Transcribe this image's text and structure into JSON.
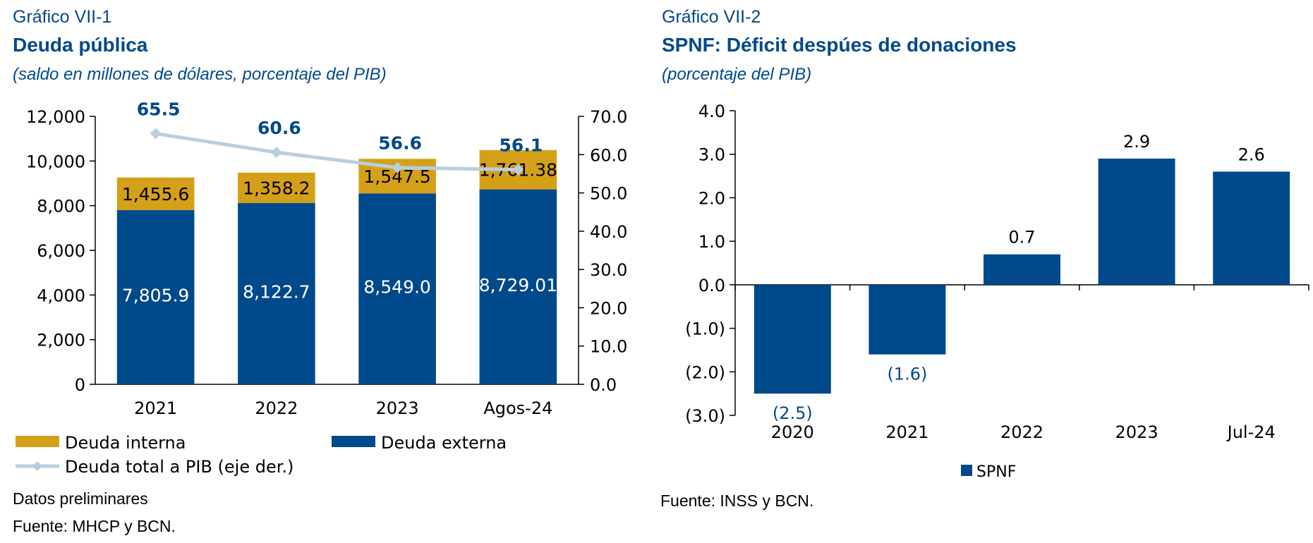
{
  "colors": {
    "external": "#00498a",
    "internal": "#d4a017",
    "ratio_line": "#b8cfe0",
    "title": "#00498a"
  },
  "left": {
    "label": "Gráfico VII-1",
    "title": "Deuda pública",
    "subtitle": "(saldo en millones de dólares, porcentaje del PIB)",
    "note": "Datos preliminares",
    "source": "Fuente: MHCP y BCN.",
    "legend": {
      "internal": "Deuda interna",
      "external": "Deuda externa",
      "ratio": "Deuda total a PIB (eje der.)"
    }
  },
  "right": {
    "label": "Gráfico VII-2",
    "title": "SPNF: Déficit despúes de donaciones",
    "subtitle": "(porcentaje del PIB)",
    "source": "Fuente: INSS y  BCN.",
    "legend": {
      "series": "SPNF"
    }
  },
  "chart_data": [
    {
      "type": "bar",
      "stacked": true,
      "categories": [
        "2021",
        "2022",
        "2023",
        "Agos-24"
      ],
      "series": [
        {
          "name": "Deuda externa",
          "values": [
            7805.9,
            8122.7,
            8549.0,
            8729.01
          ],
          "labels": [
            "7,805.9",
            "8,122.7",
            "8,549.0",
            "8,729.01"
          ]
        },
        {
          "name": "Deuda interna",
          "values": [
            1455.6,
            1358.2,
            1547.5,
            1761.38
          ],
          "labels": [
            "1,455.6",
            "1,358.2",
            "1,547.5",
            "1,761.38"
          ]
        }
      ],
      "line_series": {
        "name": "Deuda total a PIB (eje der.)",
        "axis": "right",
        "values": [
          65.5,
          60.6,
          56.6,
          56.1
        ],
        "labels": [
          "65.5",
          "60.6",
          "56.6",
          "56.1"
        ]
      },
      "ylim": [
        0,
        12000
      ],
      "yticks": [
        "0",
        "2,000",
        "4,000",
        "6,000",
        "8,000",
        "10,000",
        "12,000"
      ],
      "y2lim": [
        0,
        70
      ],
      "y2ticks": [
        "0.0",
        "10.0",
        "20.0",
        "30.0",
        "40.0",
        "50.0",
        "60.0",
        "70.0"
      ],
      "legend_position": "bottom"
    },
    {
      "type": "bar",
      "categories": [
        "2020",
        "2021",
        "2022",
        "2023",
        "Jul-24"
      ],
      "series": [
        {
          "name": "SPNF",
          "values": [
            -2.5,
            -1.6,
            0.7,
            2.9,
            2.6
          ],
          "labels": [
            "(2.5)",
            "(1.6)",
            "0.7",
            "2.9",
            "2.6"
          ]
        }
      ],
      "ylim": [
        -3,
        4
      ],
      "yticks": [
        "(3.0)",
        "(2.0)",
        "(1.0)",
        "0.0",
        "1.0",
        "2.0",
        "3.0",
        "4.0"
      ],
      "legend_position": "bottom"
    }
  ]
}
